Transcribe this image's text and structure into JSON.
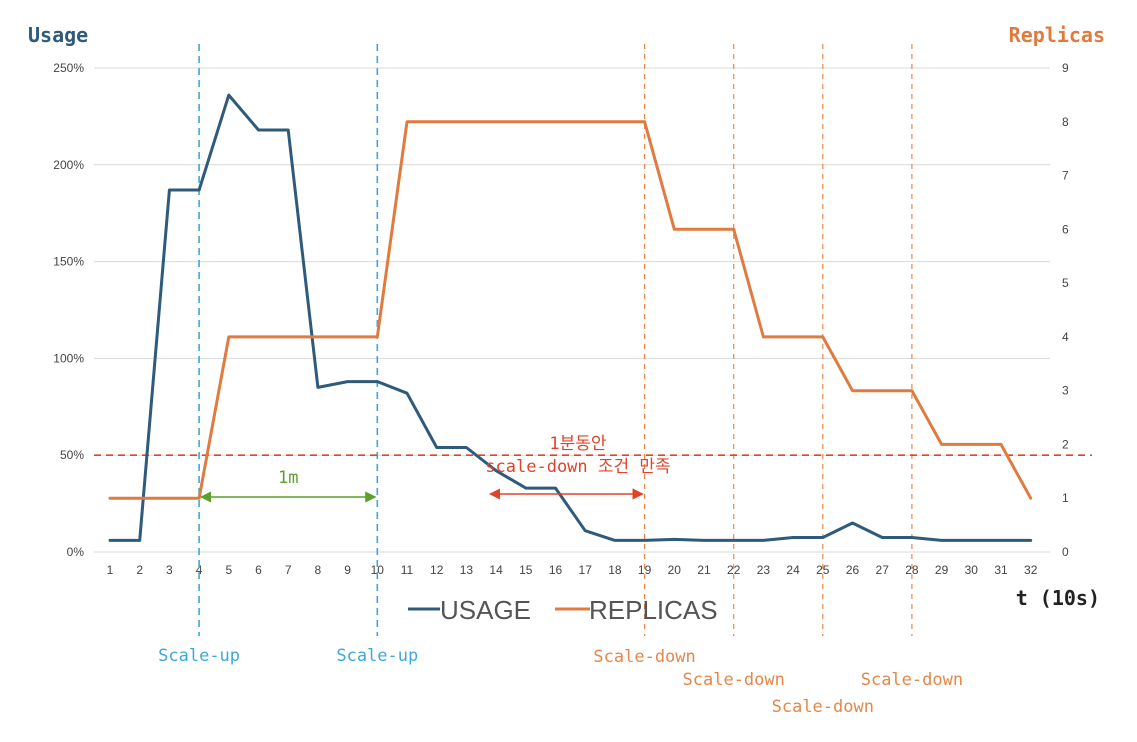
{
  "chart_data": {
    "type": "line",
    "title": "",
    "xlabel": "t (10s)",
    "ylabel_left": "Usage",
    "ylabel_right": "Replicas",
    "x": [
      1,
      2,
      3,
      4,
      5,
      6,
      7,
      8,
      9,
      10,
      11,
      12,
      13,
      14,
      15,
      16,
      17,
      18,
      19,
      20,
      21,
      22,
      23,
      24,
      25,
      26,
      27,
      28,
      29,
      30,
      31,
      32
    ],
    "ylim_left": [
      0,
      250
    ],
    "ylim_right": [
      0,
      9
    ],
    "yticks_left": [
      "0%",
      "50%",
      "100%",
      "150%",
      "200%",
      "250%"
    ],
    "yticks_right": [
      "0",
      "1",
      "2",
      "3",
      "4",
      "5",
      "6",
      "7",
      "8",
      "9"
    ],
    "grid": true,
    "legend_position": "bottom",
    "series": [
      {
        "name": "USAGE",
        "axis": "left",
        "color": "#2e5b7c",
        "values": [
          6,
          6,
          187,
          187,
          236,
          218,
          218,
          85,
          88,
          88,
          82,
          54,
          54,
          42,
          33,
          33,
          11,
          6,
          6,
          6.5,
          6,
          6,
          6,
          7.5,
          7.5,
          15,
          7.5,
          7.5,
          6,
          6,
          6,
          6
        ]
      },
      {
        "name": "REPLICAS",
        "axis": "right",
        "color": "#e07b3f",
        "values": [
          1,
          1,
          1,
          1,
          4,
          4,
          4,
          4,
          4,
          4,
          8,
          8,
          8,
          8,
          8,
          8,
          8,
          8,
          8,
          6,
          6,
          6,
          4,
          4,
          4,
          3,
          3,
          3,
          2,
          2,
          2,
          1
        ]
      }
    ],
    "threshold": {
      "value": 50,
      "axis": "left",
      "color": "#e0432a"
    },
    "events": [
      {
        "x": 4,
        "label": "Scale-up",
        "color": "#3ea8dc"
      },
      {
        "x": 10,
        "label": "Scale-up",
        "color": "#3ea8dc"
      },
      {
        "x": 19,
        "label": "Scale-down",
        "color": "#e6874a"
      },
      {
        "x": 22,
        "label": "Scale-down",
        "color": "#e6874a"
      },
      {
        "x": 25,
        "label": "Scale-down",
        "color": "#e6874a"
      },
      {
        "x": 28,
        "label": "Scale-down",
        "color": "#e6874a"
      }
    ],
    "annotations": [
      {
        "from": 4,
        "to": 10,
        "label": "1m",
        "color": "#5aa02c"
      },
      {
        "from": 14,
        "to": 19,
        "label_line1": "1분동안",
        "label_line2": "scale-down 조건 만족",
        "color": "#e0432a"
      }
    ]
  }
}
